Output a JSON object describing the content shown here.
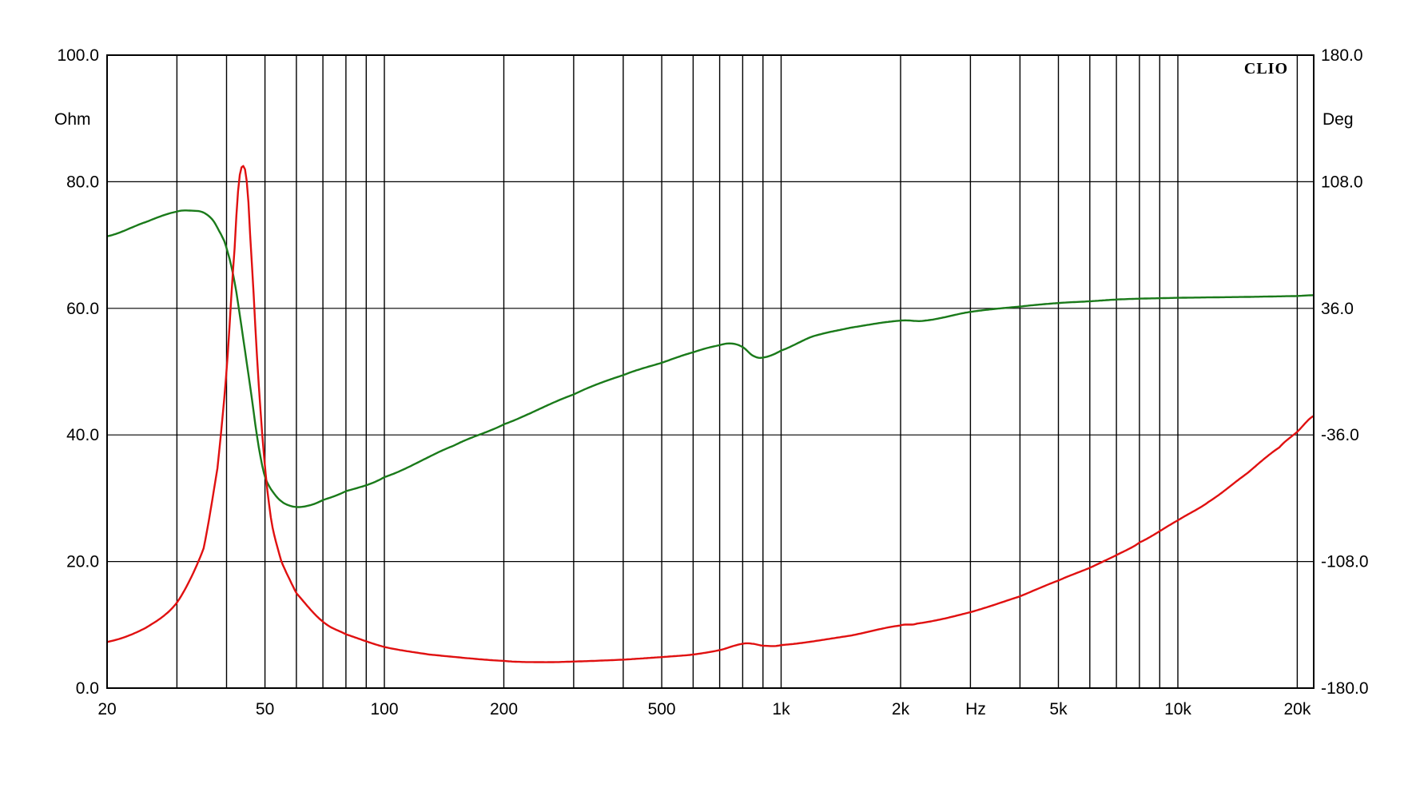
{
  "chart_data": {
    "type": "line",
    "brand": "CLIO",
    "x_scale": "log",
    "x_range": [
      20,
      22000
    ],
    "x_unit_label": "Hz",
    "x_ticks": [
      {
        "value": 20,
        "label": "20"
      },
      {
        "value": 50,
        "label": "50"
      },
      {
        "value": 100,
        "label": "100"
      },
      {
        "value": 200,
        "label": "200"
      },
      {
        "value": 500,
        "label": "500"
      },
      {
        "value": 1000,
        "label": "1k"
      },
      {
        "value": 2000,
        "label": "2k"
      },
      {
        "value": 5000,
        "label": "5k"
      },
      {
        "value": 10000,
        "label": "10k"
      },
      {
        "value": 20000,
        "label": "20k"
      }
    ],
    "x_gridlines": [
      20,
      30,
      40,
      50,
      60,
      70,
      80,
      90,
      100,
      200,
      300,
      400,
      500,
      600,
      700,
      800,
      900,
      1000,
      2000,
      3000,
      4000,
      5000,
      6000,
      7000,
      8000,
      9000,
      10000,
      20000
    ],
    "y_left": {
      "unit": "Ohm",
      "range": [
        0,
        100
      ],
      "ticks": [
        "0.0",
        "20.0",
        "40.0",
        "60.0",
        "80.0",
        "100.0"
      ]
    },
    "y_right": {
      "unit": "Deg",
      "range": [
        -180,
        180
      ],
      "ticks": [
        "-180.0",
        "-108.0",
        "-36.0",
        "36.0",
        "108.0",
        "180.0"
      ]
    },
    "grid": true,
    "series": [
      {
        "axis": "left",
        "color": "#e01010",
        "points": [
          [
            20,
            7.3
          ],
          [
            25,
            9.5
          ],
          [
            30,
            13.5
          ],
          [
            35,
            22
          ],
          [
            38,
            35
          ],
          [
            40,
            50
          ],
          [
            42,
            70
          ],
          [
            43,
            80
          ],
          [
            44,
            82.5
          ],
          [
            45,
            80
          ],
          [
            46,
            70
          ],
          [
            48,
            50
          ],
          [
            50,
            35
          ],
          [
            52,
            26
          ],
          [
            55,
            20
          ],
          [
            60,
            15
          ],
          [
            70,
            10.5
          ],
          [
            80,
            8.5
          ],
          [
            100,
            6.5
          ],
          [
            130,
            5.3
          ],
          [
            200,
            4.3
          ],
          [
            250,
            4.1
          ],
          [
            300,
            4.2
          ],
          [
            400,
            4.5
          ],
          [
            500,
            4.9
          ],
          [
            600,
            5.3
          ],
          [
            700,
            6.0
          ],
          [
            800,
            7.0
          ],
          [
            850,
            7.0
          ],
          [
            900,
            6.7
          ],
          [
            1000,
            6.8
          ],
          [
            1500,
            8.3
          ],
          [
            2000,
            9.9
          ],
          [
            2200,
            10.2
          ],
          [
            3000,
            12
          ],
          [
            4000,
            14.5
          ],
          [
            5000,
            17
          ],
          [
            6000,
            19
          ],
          [
            7000,
            21
          ],
          [
            8000,
            23
          ],
          [
            10000,
            26.5
          ],
          [
            12000,
            29.5
          ],
          [
            15000,
            34
          ],
          [
            18000,
            38
          ],
          [
            20000,
            40.5
          ],
          [
            22000,
            43
          ]
        ]
      },
      {
        "axis": "right",
        "color": "#1a7a1a",
        "points": [
          [
            20,
            77
          ],
          [
            25,
            85
          ],
          [
            30,
            91
          ],
          [
            33,
            91.5
          ],
          [
            35,
            90.5
          ],
          [
            37,
            86
          ],
          [
            39,
            77
          ],
          [
            40,
            70
          ],
          [
            42,
            50
          ],
          [
            44,
            20
          ],
          [
            46,
            -10
          ],
          [
            48,
            -40
          ],
          [
            50,
            -60
          ],
          [
            53,
            -70
          ],
          [
            56,
            -75
          ],
          [
            60,
            -77
          ],
          [
            65,
            -76
          ],
          [
            70,
            -73
          ],
          [
            80,
            -68
          ],
          [
            100,
            -60
          ],
          [
            150,
            -42
          ],
          [
            200,
            -30
          ],
          [
            300,
            -13
          ],
          [
            400,
            -2
          ],
          [
            500,
            5
          ],
          [
            600,
            11
          ],
          [
            700,
            15
          ],
          [
            750,
            16
          ],
          [
            800,
            14
          ],
          [
            850,
            9
          ],
          [
            900,
            8
          ],
          [
            1000,
            12
          ],
          [
            1200,
            20
          ],
          [
            1500,
            25
          ],
          [
            2000,
            29
          ],
          [
            2300,
            29
          ],
          [
            3000,
            34
          ],
          [
            4000,
            37
          ],
          [
            5000,
            39
          ],
          [
            6000,
            40
          ],
          [
            7000,
            41
          ],
          [
            8000,
            41.5
          ],
          [
            10000,
            42
          ],
          [
            15000,
            42.5
          ],
          [
            20000,
            43
          ],
          [
            22000,
            43.5
          ]
        ]
      }
    ]
  }
}
